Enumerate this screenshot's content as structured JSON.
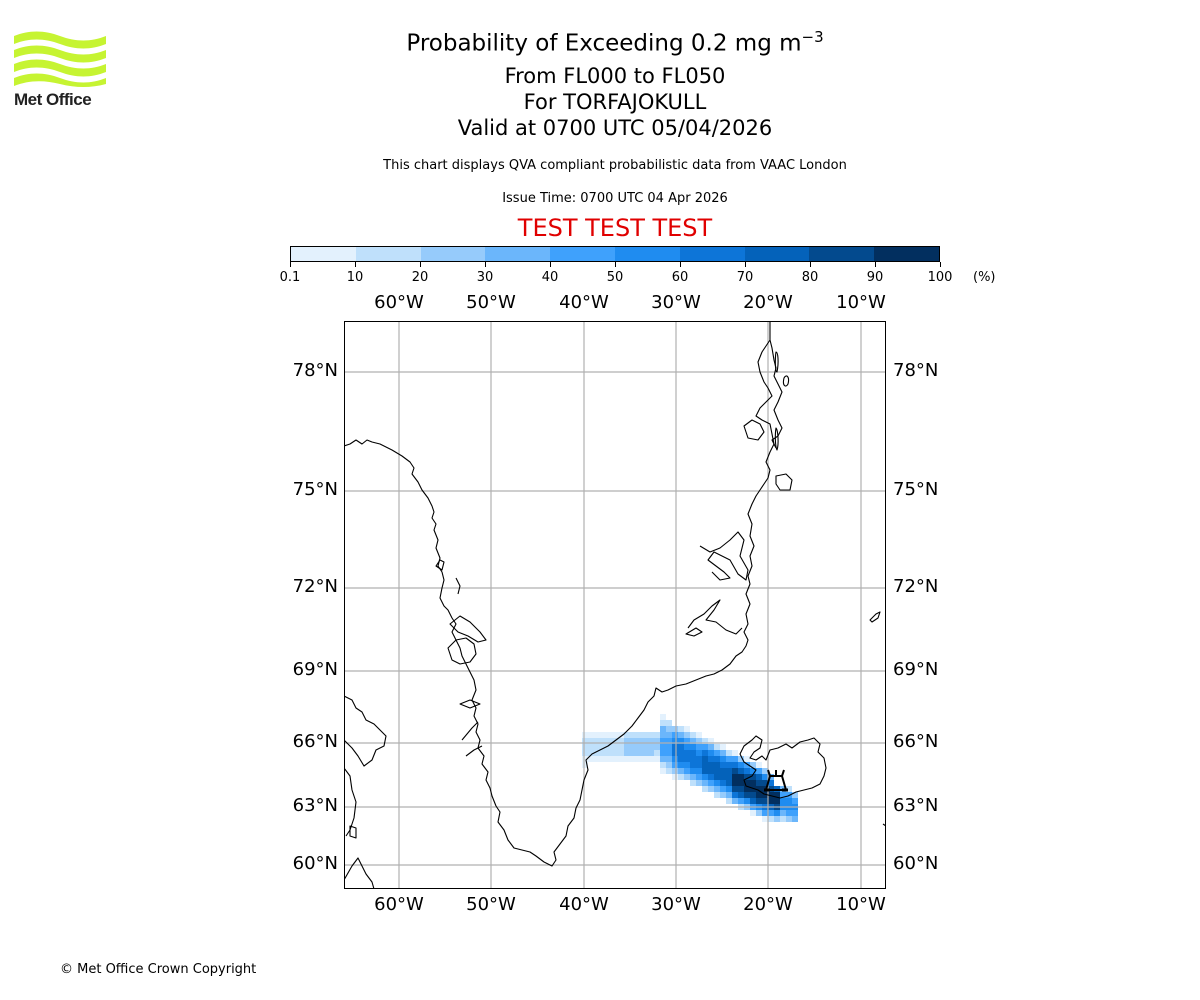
{
  "logo": {
    "text": "Met Office",
    "color": "#c6f432"
  },
  "title": {
    "line1_main": "Probability of Exceeding 0.2 mg m",
    "line1_sup": "−3",
    "line2": "From FL000 to FL050",
    "line3": "For TORFAJOKULL",
    "line4": "Valid at 0700 UTC 05/04/2026"
  },
  "subtitle": "This chart displays QVA compliant probabilistic data from VAAC London",
  "issue_time": "Issue Time: 0700 UTC 04 Apr 2026",
  "test_banner": "TEST TEST TEST",
  "colorbar": {
    "ticks": [
      "0.1",
      "10",
      "20",
      "30",
      "40",
      "50",
      "60",
      "70",
      "80",
      "90",
      "100"
    ],
    "unit": "(%)",
    "colors": [
      "#e3f1fd",
      "#bfe0fb",
      "#96cbfb",
      "#6bb6fb",
      "#3fa1fc",
      "#1f8cf0",
      "#0d75d8",
      "#0462ba",
      "#034a8e",
      "#022f5f"
    ]
  },
  "map": {
    "lon_labels": [
      "60°W",
      "50°W",
      "40°W",
      "30°W",
      "20°W",
      "10°W"
    ],
    "lat_labels": [
      "78°N",
      "75°N",
      "72°N",
      "69°N",
      "66°N",
      "63°N",
      "60°N"
    ],
    "volcano": "TORFAJOKULL",
    "plume_levels_percent": [
      10,
      20,
      30,
      40,
      50,
      60,
      70,
      80,
      90,
      100
    ]
  },
  "footer": {
    "copyright": "© Met Office Crown Copyright"
  }
}
